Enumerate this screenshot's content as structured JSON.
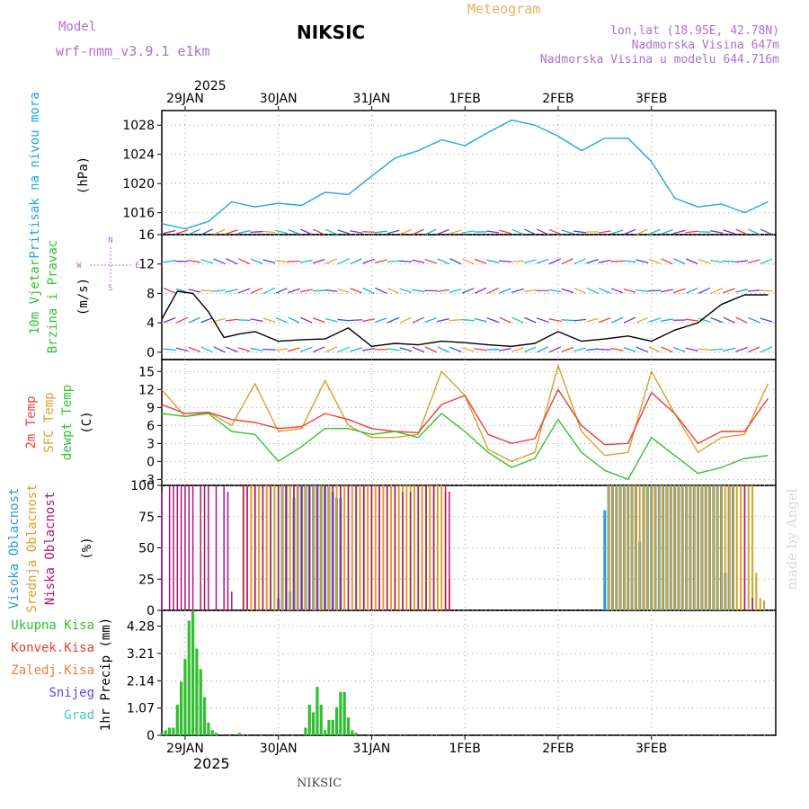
{
  "header": {
    "model_label": "Model",
    "model_name": "wrf-nmm_v3.9.1 e1km",
    "station": "NIKSIC",
    "meteogram_label": "Meteogram",
    "location": "lon,lat (18.95E, 42.78N)",
    "elevation": "Nadmorska Visina 647m",
    "model_elevation": "Nadmorska Visina u modelu 644.716m"
  },
  "axis_top": {
    "year": "2025",
    "days": [
      "29JAN",
      "30JAN",
      "31JAN",
      "1FEB",
      "2FEB",
      "3FEB"
    ]
  },
  "axis_bottom": {
    "year": "2025",
    "days": [
      "29JAN",
      "30JAN",
      "31JAN",
      "1FEB",
      "2FEB",
      "3FEB"
    ]
  },
  "footer": {
    "station": "NIKSIC",
    "credit": "made by Angel"
  },
  "colors": {
    "pressure": "#1ea7e1",
    "temp2m": "#e8403a",
    "sfc_temp": "#d9a02a",
    "dewpoint": "#33c233",
    "wind_speed": "#000000",
    "gust": "#e8403a",
    "high_cloud": "#2c9bd1",
    "mid_cloud": "#d9a02a",
    "low_cloud": "#b0137c",
    "precip": "#2fbf2f",
    "label_purple": "#b070d0",
    "label_orange": "#e6b25c"
  },
  "panels": {
    "pressure": {
      "label": "Pritisak na nivou mora",
      "unit": "(hPa)",
      "ticks": [
        "1016",
        "1020",
        "1024",
        "1028"
      ]
    },
    "wind": {
      "label1": "10m Vjetar",
      "label2": "Brzina i Pravac",
      "unit": "(m/s)",
      "ticks": [
        "0",
        "4",
        "8",
        "12",
        "16"
      ],
      "compass": {
        "n": "N",
        "s": "S",
        "e": "E",
        "w": "W"
      }
    },
    "temp": {
      "label1": "2m Temp",
      "label2": "SFC Temp",
      "label3": "dewpt Temp",
      "unit": "(C)",
      "ticks": [
        "-3",
        "0",
        "3",
        "6",
        "9",
        "12",
        "15"
      ]
    },
    "cloud": {
      "label1": "Visoka Oblacnost",
      "label2": "Srednja Oblacnost",
      "label3": "Niska Oblacnost",
      "unit": "(%)",
      "ticks": [
        "0",
        "25",
        "50",
        "75",
        "100"
      ]
    },
    "precip": {
      "legend": [
        "Ukupna Kisa",
        "Konvek.Kisa",
        "Zaledj.Kisa",
        "Snijeg",
        "Grad"
      ],
      "unit": "1hr Precip (mm)",
      "ticks": [
        "0",
        "1.07",
        "2.14",
        "3.21",
        "4.28"
      ]
    }
  },
  "chart_data": [
    {
      "type": "line",
      "name": "sea-level pressure",
      "unit": "hPa",
      "ylim": [
        1013,
        1030
      ],
      "x_hours": [
        0,
        6,
        12,
        18,
        24,
        30,
        36,
        42,
        48,
        54,
        60,
        66,
        72,
        78,
        84,
        90,
        96,
        102,
        108,
        114,
        120,
        126,
        132,
        138,
        144,
        150,
        156
      ],
      "values": [
        1014.5,
        1013.8,
        1014.8,
        1017.5,
        1016.8,
        1017.3,
        1017.0,
        1018.8,
        1018.5,
        1021,
        1023.5,
        1024.5,
        1026,
        1025.2,
        1027,
        1028.7,
        1028,
        1026.5,
        1024.5,
        1026.2,
        1026.2,
        1023,
        1018,
        1016.8,
        1017.2,
        1016,
        1017.5
      ]
    },
    {
      "type": "line",
      "name": "10m wind speed",
      "unit": "m/s",
      "ylim": [
        -1,
        16
      ],
      "x_hours": [
        0,
        4,
        8,
        12,
        16,
        20,
        24,
        30,
        36,
        42,
        48,
        54,
        60,
        66,
        72,
        78,
        84,
        90,
        96,
        102,
        108,
        114,
        120,
        126,
        132,
        138,
        144,
        150,
        156
      ],
      "values": [
        4.5,
        8.3,
        8.0,
        5.5,
        2.0,
        2.5,
        2.8,
        1.5,
        1.7,
        1.8,
        3.3,
        0.8,
        1.2,
        1.0,
        1.5,
        1.3,
        1.0,
        0.8,
        1.2,
        2.8,
        1.5,
        1.8,
        2.2,
        1.5,
        3.0,
        4.0,
        6.5,
        7.8,
        7.8
      ]
    },
    {
      "type": "line",
      "name": "2m temperature",
      "unit": "C",
      "ylim": [
        -4,
        17
      ],
      "x_hours": [
        0,
        6,
        12,
        18,
        24,
        30,
        36,
        42,
        48,
        54,
        60,
        66,
        72,
        78,
        84,
        90,
        96,
        102,
        108,
        114,
        120,
        126,
        132,
        138,
        144,
        150,
        156
      ],
      "values": [
        9.5,
        8.0,
        8.2,
        7.0,
        6.5,
        5.5,
        5.8,
        8.0,
        7.0,
        5.5,
        5.0,
        4.8,
        9.5,
        11.0,
        4.5,
        3.0,
        3.8,
        12.0,
        6.0,
        2.8,
        3.0,
        11.5,
        8.0,
        3.0,
        5.0,
        5.0,
        10.5
      ]
    },
    {
      "type": "line",
      "name": "surface temperature",
      "unit": "C",
      "ylim": [
        -4,
        17
      ],
      "x_hours": [
        0,
        6,
        12,
        18,
        24,
        30,
        36,
        42,
        48,
        54,
        60,
        66,
        72,
        78,
        84,
        90,
        96,
        102,
        108,
        114,
        120,
        126,
        132,
        138,
        144,
        150,
        156
      ],
      "values": [
        12.0,
        7.5,
        8.2,
        6.0,
        13.0,
        5.0,
        5.5,
        13.5,
        6.0,
        4.0,
        4.0,
        4.5,
        15.0,
        11.0,
        2.0,
        0.0,
        1.5,
        16.0,
        5.0,
        1.0,
        1.5,
        15.0,
        8.0,
        1.5,
        4.0,
        4.5,
        13.0
      ]
    },
    {
      "type": "line",
      "name": "dewpoint temperature",
      "unit": "C",
      "ylim": [
        -4,
        17
      ],
      "x_hours": [
        0,
        6,
        12,
        18,
        24,
        30,
        36,
        42,
        48,
        54,
        60,
        66,
        72,
        78,
        84,
        90,
        96,
        102,
        108,
        114,
        120,
        126,
        132,
        138,
        144,
        150,
        156
      ],
      "values": [
        8.0,
        7.5,
        8.0,
        5.0,
        4.5,
        0.0,
        2.5,
        5.5,
        5.5,
        4.5,
        5.0,
        4.0,
        8.0,
        5.0,
        1.5,
        -1.0,
        0.5,
        7.0,
        1.5,
        -1.5,
        -3.0,
        4.0,
        1.0,
        -2.0,
        -1.0,
        0.5,
        1.0
      ]
    },
    {
      "type": "bar",
      "name": "cloud cover",
      "unit": "%",
      "ylim": [
        0,
        100
      ],
      "series": [
        {
          "name": "high",
          "hours": [
            30,
            31,
            32,
            33,
            34,
            35,
            36,
            37,
            38,
            39,
            40,
            41,
            42,
            43,
            44,
            45,
            46,
            114,
            115,
            116,
            117,
            118,
            119,
            120,
            121,
            122,
            123,
            124,
            125,
            126,
            127,
            128,
            129,
            130,
            131,
            132,
            133,
            134,
            135,
            136,
            137,
            138,
            139,
            140,
            141,
            142,
            143,
            144,
            145,
            146,
            147
          ],
          "values": [
            10,
            100,
            100,
            15,
            90,
            100,
            100,
            100,
            100,
            100,
            100,
            100,
            100,
            100,
            95,
            90,
            90,
            80,
            100,
            100,
            100,
            100,
            100,
            100,
            100,
            100,
            55,
            100,
            100,
            100,
            100,
            100,
            100,
            100,
            100,
            100,
            100,
            100,
            100,
            100,
            100,
            100,
            100,
            100,
            100,
            100,
            100,
            100,
            30,
            100,
            100
          ]
        },
        {
          "name": "mid",
          "hours": [
            21,
            22,
            23,
            24,
            25,
            26,
            27,
            28,
            29,
            30,
            31,
            32,
            33,
            34,
            35,
            36,
            37,
            38,
            39,
            40,
            41,
            42,
            43,
            44,
            45,
            46,
            47,
            48,
            49,
            50,
            51,
            52,
            53,
            54,
            55,
            56,
            57,
            58,
            59,
            60,
            61,
            62,
            63,
            64,
            65,
            66,
            67,
            68,
            69,
            70,
            71,
            72,
            73,
            74,
            115,
            116,
            117,
            118,
            119,
            120,
            121,
            122,
            123,
            124,
            125,
            126,
            127,
            128,
            129,
            130,
            131,
            132,
            133,
            134,
            135,
            136,
            137,
            138,
            139,
            140,
            141,
            142,
            143,
            144,
            145,
            146,
            147,
            148,
            149,
            150,
            151,
            152,
            153,
            154,
            155
          ],
          "values": [
            100,
            100,
            100,
            100,
            100,
            100,
            100,
            100,
            100,
            100,
            100,
            100,
            100,
            100,
            100,
            100,
            100,
            100,
            100,
            100,
            100,
            100,
            100,
            100,
            100,
            100,
            100,
            100,
            100,
            100,
            100,
            100,
            100,
            100,
            100,
            100,
            100,
            100,
            100,
            100,
            100,
            100,
            100,
            100,
            100,
            100,
            100,
            100,
            100,
            100,
            100,
            100,
            95,
            25,
            100,
            100,
            100,
            100,
            100,
            100,
            100,
            100,
            100,
            100,
            100,
            100,
            100,
            100,
            100,
            100,
            100,
            100,
            100,
            100,
            100,
            100,
            100,
            100,
            100,
            100,
            100,
            100,
            100,
            100,
            100,
            100,
            100,
            100,
            100,
            100,
            100,
            100,
            30,
            10,
            8
          ]
        },
        {
          "name": "low",
          "hours": [
            0,
            2,
            3,
            4,
            5,
            6,
            7,
            8,
            10,
            11,
            12,
            14,
            16,
            17,
            18,
            21,
            22,
            24,
            26,
            28,
            30,
            32,
            34,
            36,
            38,
            40,
            42,
            44,
            46,
            48,
            50,
            52,
            54,
            56,
            58,
            60,
            62,
            64,
            66,
            68,
            70,
            73,
            74,
            150,
            152
          ],
          "values": [
            95,
            100,
            100,
            100,
            100,
            100,
            100,
            100,
            100,
            100,
            100,
            100,
            100,
            95,
            15,
            100,
            100,
            100,
            100,
            100,
            100,
            100,
            100,
            100,
            100,
            100,
            100,
            100,
            100,
            100,
            100,
            100,
            100,
            100,
            100,
            100,
            95,
            95,
            100,
            100,
            100,
            100,
            95,
            100,
            10
          ]
        }
      ]
    },
    {
      "type": "bar",
      "name": "1hr precipitation",
      "unit": "mm",
      "ylim": [
        0,
        4.9
      ],
      "hours": [
        0,
        1,
        2,
        3,
        4,
        5,
        6,
        7,
        8,
        9,
        10,
        11,
        12,
        13,
        14,
        20,
        37,
        38,
        39,
        40,
        41,
        42,
        43,
        44,
        45,
        46,
        47,
        48,
        49,
        50
      ],
      "values": [
        0.1,
        0.2,
        0.3,
        0.3,
        1.2,
        2.1,
        3.0,
        4.5,
        4.9,
        3.4,
        2.6,
        1.5,
        0.5,
        0.2,
        0.1,
        0.1,
        0.3,
        1.2,
        0.9,
        1.9,
        1.2,
        0.2,
        0.6,
        0.6,
        1.1,
        1.7,
        1.7,
        0.7,
        0.2,
        0.1
      ]
    }
  ]
}
